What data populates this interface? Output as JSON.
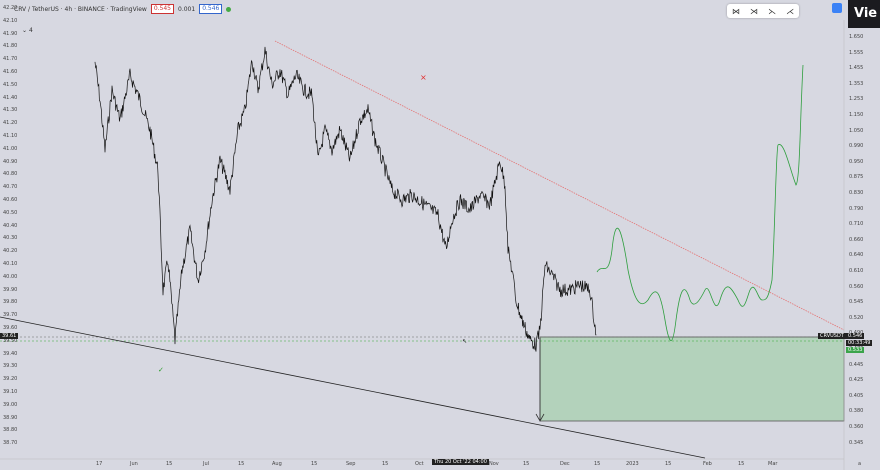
{
  "header": {
    "title": "CRV / TetherUS · 4h · BINANCE · TradingView",
    "sell_price": "0.545",
    "spread": "0.001",
    "buy_price": "0.546",
    "indicator_count": "4"
  },
  "toolbox": {
    "tools": [
      "⋈",
      "⋊",
      "⋋",
      "⋌"
    ]
  },
  "view_button": {
    "label": "Vie"
  },
  "left_axis": {
    "labels": [
      "42.20",
      "42.10",
      "41.90",
      "41.80",
      "41.70",
      "41.60",
      "41.50",
      "41.40",
      "41.30",
      "41.20",
      "41.10",
      "41.00",
      "40.90",
      "40.80",
      "40.70",
      "40.60",
      "40.50",
      "40.40",
      "40.30",
      "40.20",
      "40.10",
      "40.00",
      "39.90",
      "39.80",
      "39.70",
      "39.60",
      "39.50",
      "39.40",
      "39.30",
      "39.20",
      "39.10",
      "39.00",
      "38.90",
      "38.80",
      "38.70"
    ]
  },
  "right_axis": {
    "labels": [
      "1.650",
      "1.555",
      "1.455",
      "1.353",
      "1.253",
      "1.150",
      "1.050",
      "0.990",
      "0.950",
      "0.875",
      "0.830",
      "0.790",
      "0.710",
      "0.660",
      "0.640",
      "0.610",
      "0.560",
      "0.545",
      "0.520",
      "0.490",
      "0.470",
      "0.445",
      "0.425",
      "0.405",
      "0.380",
      "0.360",
      "0.345"
    ]
  },
  "x_axis": {
    "labels": [
      "17",
      "Jun",
      "15",
      "Jul",
      "15",
      "Aug",
      "15",
      "Sep",
      "15",
      "Oct",
      "15",
      "Nov",
      "15",
      "Dec",
      "15",
      "2023",
      "15",
      "Feb",
      "15",
      "Mar",
      "a"
    ],
    "cursor_date": "Thu 20 Oct '22  04:00"
  },
  "price_tags": {
    "left": "39.61",
    "symbol": "CRVUSDT",
    "current": "0.546",
    "countdown": "00:33:49",
    "green": "0.533"
  },
  "colors": {
    "background": "#d7d8e1",
    "resistance": "#e57373",
    "projection": "#2e9e3e",
    "zone": "#a9cfb2"
  }
}
